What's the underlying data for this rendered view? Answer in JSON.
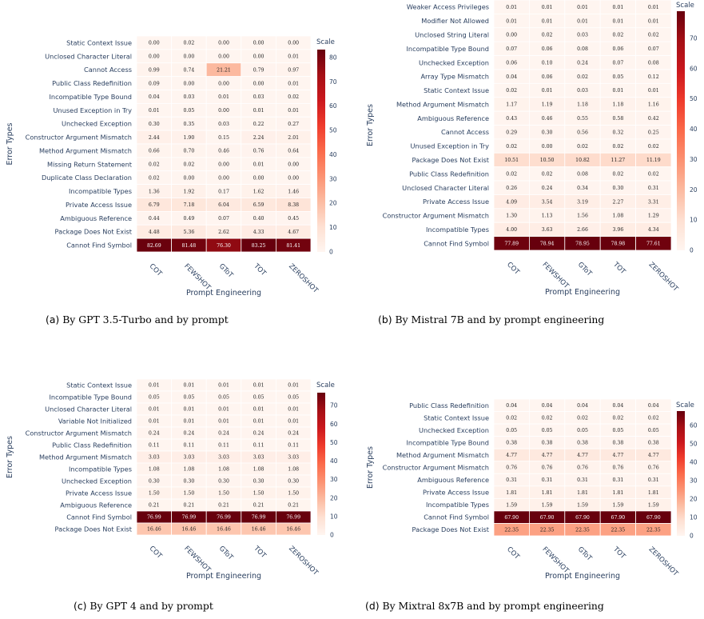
{
  "colors": {
    "low": "#fff5f0",
    "mid": "#fb6a4a",
    "high": "#67000d",
    "axis_text": "#2a3f5f"
  },
  "chart_data": [
    {
      "type": "heatmap",
      "caption_label": "(a)",
      "caption_text": "By GPT 3.5-Turbo and by prompt",
      "xlabel": "Prompt Engineering",
      "ylabel": "Error Types",
      "colorbar_title": "Scale",
      "colorbar_range": [
        0,
        83.25
      ],
      "colorbar_ticks": [
        0,
        10,
        20,
        30,
        40,
        50,
        60,
        70,
        80
      ],
      "x": [
        "COT",
        "FEWSHOT",
        "GToT",
        "TOT",
        "ZEROSHOT"
      ],
      "y": [
        "Static Context Issue",
        "Unclosed Character Literal",
        "Cannot Access",
        "Public Class Redefinition",
        "Incompatible Type Bound",
        "Unused Exception in Try",
        "Unchecked Exception",
        "Constructor Argument Mismatch",
        "Method Argument Mismatch",
        "Missing Return Statement",
        "Duplicate Class Declaration",
        "Incompatible Types",
        "Private Access Issue",
        "Ambiguous Reference",
        "Package Does Not Exist",
        "Cannot Find Symbol"
      ],
      "z": [
        [
          "0.00",
          "0.02",
          "0.00",
          "0.00",
          "0.00"
        ],
        [
          "0.00",
          "0.00",
          "0.00",
          "0.00",
          "0.01"
        ],
        [
          "0.99",
          "0.74",
          "21.21",
          "0.79",
          "0.97"
        ],
        [
          "0.09",
          "0.00",
          "0.00",
          "0.00",
          "0.01"
        ],
        [
          "0.04",
          "0.03",
          "0.01",
          "0.03",
          "0.02"
        ],
        [
          "0.01",
          "0.05",
          "0.00",
          "0.01",
          "0.01"
        ],
        [
          "0.30",
          "0.35",
          "0.03",
          "0.22",
          "0.27"
        ],
        [
          "2.44",
          "1.90",
          "0.15",
          "2.24",
          "2.01"
        ],
        [
          "0.66",
          "0.70",
          "0.46",
          "0.76",
          "0.64"
        ],
        [
          "0.02",
          "0.02",
          "0.00",
          "0.01",
          "0.00"
        ],
        [
          "0.02",
          "0.00",
          "0.00",
          "0.00",
          "0.00"
        ],
        [
          "1.36",
          "1.92",
          "0.17",
          "1.62",
          "1.46"
        ],
        [
          "6.79",
          "7.18",
          "6.04",
          "6.59",
          "8.38"
        ],
        [
          "0.44",
          "0.49",
          "0.07",
          "0.40",
          "0.45"
        ],
        [
          "4.48",
          "5.36",
          "2.62",
          "4.33",
          "4.67"
        ],
        [
          "82.69",
          "81.48",
          "76.30",
          "83.25",
          "81.41"
        ]
      ]
    },
    {
      "type": "heatmap",
      "caption_label": "(b)",
      "caption_text": "By Mistral 7B and by prompt engineering",
      "xlabel": "Prompt Engineering",
      "ylabel": "Error Types",
      "colorbar_title": "Scale",
      "colorbar_range": [
        0,
        78.98
      ],
      "colorbar_ticks": [
        0,
        10,
        20,
        30,
        40,
        50,
        60,
        70
      ],
      "x": [
        "COT",
        "FEWSHOT",
        "GToT",
        "TOT",
        "ZEROSHOT"
      ],
      "y": [
        "Weaker Access Privileges",
        "Modifier Not Allowed",
        "Unclosed String Literal",
        "Incompatible Type Bound",
        "Unchecked Exception",
        "Array Type Mismatch",
        "Static Context Issue",
        "Method Argument Mismatch",
        "Ambiguous Reference",
        "Cannot Access",
        "Unused Exception in Try",
        "Package Does Not Exist",
        "Public Class Redefinition",
        "Unclosed Character Literal",
        "Private Access Issue",
        "Constructor Argument Mismatch",
        "Incompatible Types",
        "Cannot Find Symbol"
      ],
      "z": [
        [
          "0.01",
          "0.01",
          "0.01",
          "0.01",
          "0.01"
        ],
        [
          "0.01",
          "0.01",
          "0.01",
          "0.01",
          "0.01"
        ],
        [
          "0.00",
          "0.02",
          "0.03",
          "0.02",
          "0.02"
        ],
        [
          "0.07",
          "0.06",
          "0.08",
          "0.06",
          "0.07"
        ],
        [
          "0.06",
          "0.10",
          "0.24",
          "0.07",
          "0.08"
        ],
        [
          "0.04",
          "0.06",
          "0.02",
          "0.05",
          "0.12"
        ],
        [
          "0.02",
          "0.01",
          "0.03",
          "0.01",
          "0.01"
        ],
        [
          "1.17",
          "1.19",
          "1.18",
          "1.18",
          "1.16"
        ],
        [
          "0.43",
          "0.46",
          "0.55",
          "0.58",
          "0.42"
        ],
        [
          "0.29",
          "0.30",
          "0.56",
          "0.32",
          "0.25"
        ],
        [
          "0.02",
          "0.00",
          "0.02",
          "0.02",
          "0.02"
        ],
        [
          "10.51",
          "10.50",
          "10.82",
          "11.27",
          "11.19"
        ],
        [
          "0.02",
          "0.02",
          "0.08",
          "0.02",
          "0.02"
        ],
        [
          "0.26",
          "0.24",
          "0.34",
          "0.30",
          "0.31"
        ],
        [
          "4.09",
          "3.54",
          "3.19",
          "2.27",
          "3.31"
        ],
        [
          "1.30",
          "1.13",
          "1.56",
          "1.08",
          "1.29"
        ],
        [
          "4.00",
          "3.63",
          "2.66",
          "3.96",
          "4.34"
        ],
        [
          "77.89",
          "78.94",
          "78.95",
          "78.98",
          "77.61"
        ]
      ]
    },
    {
      "type": "heatmap",
      "caption_label": "(c)",
      "caption_text": "By GPT 4 and by prompt",
      "xlabel": "Prompt Engineering",
      "ylabel": "Error Types",
      "colorbar_title": "Scale",
      "colorbar_range": [
        0,
        76.99
      ],
      "colorbar_ticks": [
        0,
        10,
        20,
        30,
        40,
        50,
        60,
        70
      ],
      "x": [
        "COT",
        "FEWSHOT",
        "GToT",
        "TOT",
        "ZEROSHOT"
      ],
      "y": [
        "Static Context Issue",
        "Incompatible Type Bound",
        "Unclosed Character Literal",
        "Variable Not Initialized",
        "Constructor Argument Mismatch",
        "Public Class Redefinition",
        "Method Argument Mismatch",
        "Incompatible Types",
        "Unchecked Exception",
        "Private Access Issue",
        "Ambiguous Reference",
        "Cannot Find Symbol",
        "Package Does Not Exist"
      ],
      "z": [
        [
          "0.01",
          "0.01",
          "0.01",
          "0.01",
          "0.01"
        ],
        [
          "0.05",
          "0.05",
          "0.05",
          "0.05",
          "0.05"
        ],
        [
          "0.01",
          "0.01",
          "0.01",
          "0.01",
          "0.01"
        ],
        [
          "0.01",
          "0.01",
          "0.01",
          "0.01",
          "0.01"
        ],
        [
          "0.24",
          "0.24",
          "0.24",
          "0.24",
          "0.24"
        ],
        [
          "0.11",
          "0.11",
          "0.11",
          "0.11",
          "0.11"
        ],
        [
          "3.03",
          "3.03",
          "3.03",
          "3.03",
          "3.03"
        ],
        [
          "1.08",
          "1.08",
          "1.08",
          "1.08",
          "1.08"
        ],
        [
          "0.30",
          "0.30",
          "0.30",
          "0.30",
          "0.30"
        ],
        [
          "1.50",
          "1.50",
          "1.50",
          "1.50",
          "1.50"
        ],
        [
          "0.21",
          "0.21",
          "0.21",
          "0.21",
          "0.21"
        ],
        [
          "76.99",
          "76.99",
          "76.99",
          "76.99",
          "76.99"
        ],
        [
          "16.46",
          "16.46",
          "16.46",
          "16.46",
          "16.46"
        ]
      ]
    },
    {
      "type": "heatmap",
      "caption_label": "(d)",
      "caption_text": "By Mixtral 8x7B and by prompt engineering",
      "xlabel": "Prompt Engineering",
      "ylabel": "Error Types",
      "colorbar_title": "Scale",
      "colorbar_range": [
        0,
        67.9
      ],
      "colorbar_ticks": [
        0,
        10,
        20,
        30,
        40,
        50,
        60
      ],
      "x": [
        "COT",
        "FEWSHOT",
        "GToT",
        "TOT",
        "ZEROSHOT"
      ],
      "y": [
        "Public Class Redefinition",
        "Static Context Issue",
        "Unchecked Exception",
        "Incompatible Type Bound",
        "Method Argument Mismatch",
        "Constructor Argument Mismatch",
        "Ambiguous Reference",
        "Private Access Issue",
        "Incompatible Types",
        "Cannot Find Symbol",
        "Package Does Not Exist"
      ],
      "z": [
        [
          "0.04",
          "0.04",
          "0.04",
          "0.04",
          "0.04"
        ],
        [
          "0.02",
          "0.02",
          "0.02",
          "0.02",
          "0.02"
        ],
        [
          "0.05",
          "0.05",
          "0.05",
          "0.05",
          "0.05"
        ],
        [
          "0.38",
          "0.38",
          "0.38",
          "0.38",
          "0.38"
        ],
        [
          "4.77",
          "4.77",
          "4.77",
          "4.77",
          "4.77"
        ],
        [
          "0.76",
          "0.76",
          "0.76",
          "0.76",
          "0.76"
        ],
        [
          "0.31",
          "0.31",
          "0.31",
          "0.31",
          "0.31"
        ],
        [
          "1.81",
          "1.81",
          "1.81",
          "1.81",
          "1.81"
        ],
        [
          "1.59",
          "1.59",
          "1.59",
          "1.59",
          "1.59"
        ],
        [
          "67.90",
          "67.90",
          "67.90",
          "67.90",
          "67.90"
        ],
        [
          "22.35",
          "22.35",
          "22.35",
          "22.35",
          "22.35"
        ]
      ]
    }
  ]
}
